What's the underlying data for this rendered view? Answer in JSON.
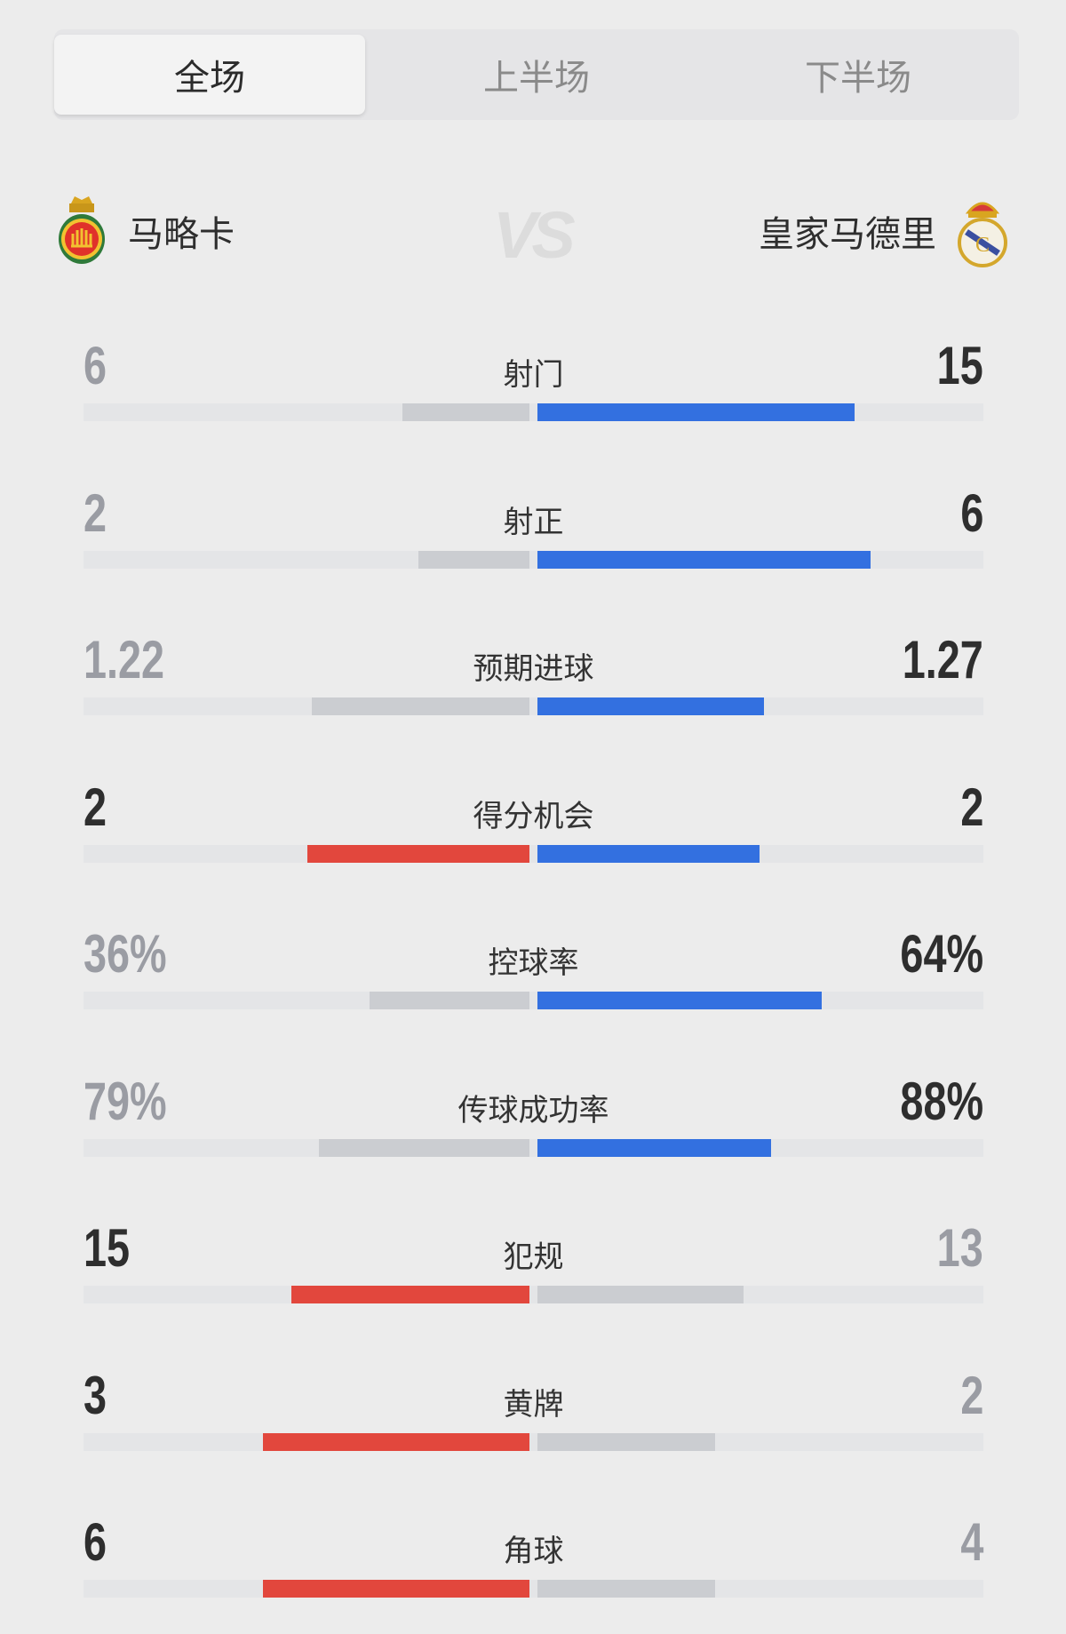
{
  "tabs": [
    {
      "label": "全场",
      "active": true
    },
    {
      "label": "上半场",
      "active": false
    },
    {
      "label": "下半场",
      "active": false
    }
  ],
  "match": {
    "home": {
      "name": "马略卡",
      "crest": "mallorca-crest"
    },
    "away": {
      "name": "皇家马德里",
      "crest": "real-madrid-crest"
    },
    "vs": "VS"
  },
  "colors": {
    "home": "#e2473d",
    "away": "#3370e0",
    "neutral": "#cbcdd1",
    "track": "#e4e5e7",
    "strong_text": "#2e2e2e",
    "weak_text": "#9a9ca3"
  },
  "stats": [
    {
      "label": "射门",
      "home": "6",
      "away": "15",
      "home_v": 6,
      "away_v": 15
    },
    {
      "label": "射正",
      "home": "2",
      "away": "6",
      "home_v": 2,
      "away_v": 6
    },
    {
      "label": "预期进球",
      "home": "1.22",
      "away": "1.27",
      "home_v": 1.22,
      "away_v": 1.27
    },
    {
      "label": "得分机会",
      "home": "2",
      "away": "2",
      "home_v": 2,
      "away_v": 2
    },
    {
      "label": "控球率",
      "home": "36%",
      "away": "64%",
      "home_v": 36,
      "away_v": 64
    },
    {
      "label": "传球成功率",
      "home": "79%",
      "away": "88%",
      "home_v": 79,
      "away_v": 88
    },
    {
      "label": "犯规",
      "home": "15",
      "away": "13",
      "home_v": 15,
      "away_v": 13
    },
    {
      "label": "黄牌",
      "home": "3",
      "away": "2",
      "home_v": 3,
      "away_v": 2
    },
    {
      "label": "角球",
      "home": "6",
      "away": "4",
      "home_v": 6,
      "away_v": 4
    }
  ]
}
